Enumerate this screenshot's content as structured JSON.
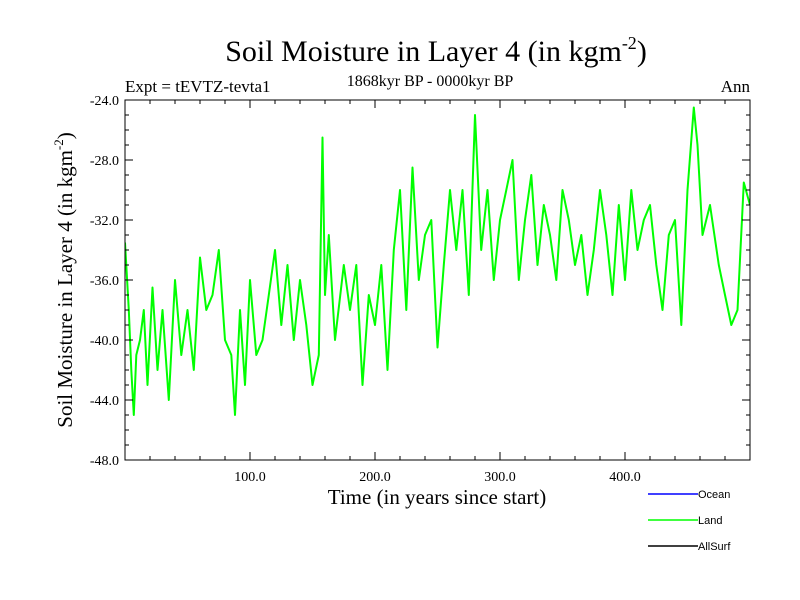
{
  "chart_data": {
    "type": "line",
    "title_main": "Soil Moisture in Layer 4 (in kgm",
    "title_sup": "-2",
    "title_close": ")",
    "subtitle": "1868kyr BP - 0000kyr BP",
    "left_label": "Expt = tEVTZ-tevta1",
    "right_label": "Ann",
    "xlabel": "Time (in years since start)",
    "ylabel_main": "Soil Moisture in Layer 4 (in kgm",
    "ylabel_sup": "-2",
    "ylabel_close": ")",
    "xlim": [
      0,
      500
    ],
    "ylim": [
      -48,
      -24
    ],
    "x_major_ticks": [
      100,
      200,
      300,
      400
    ],
    "x_tick_labels": [
      "100.0",
      "200.0",
      "300.0",
      "400.0"
    ],
    "y_major_ticks": [
      -24,
      -28,
      -32,
      -36,
      -40,
      -44,
      -48
    ],
    "y_tick_labels": [
      "-24.0",
      "-28.0",
      "-32.0",
      "-36.0",
      "-40.0",
      "-44.0",
      "-48.0"
    ],
    "legend": [
      {
        "name": "Ocean",
        "color": "#0000ff"
      },
      {
        "name": "Land",
        "color": "#00ff00"
      },
      {
        "name": "AllSurf",
        "color": "#000000"
      }
    ],
    "series": [
      {
        "name": "Land",
        "color": "#00ff00",
        "x": [
          0,
          3,
          5,
          7,
          9,
          12,
          15,
          18,
          22,
          26,
          30,
          35,
          40,
          45,
          50,
          55,
          60,
          65,
          70,
          75,
          80,
          85,
          88,
          92,
          96,
          100,
          105,
          110,
          115,
          120,
          125,
          130,
          135,
          140,
          145,
          150,
          155,
          158,
          160,
          163,
          168,
          175,
          180,
          185,
          190,
          195,
          200,
          205,
          210,
          215,
          220,
          225,
          230,
          235,
          240,
          245,
          250,
          255,
          260,
          265,
          270,
          275,
          280,
          285,
          290,
          295,
          300,
          305,
          310,
          315,
          320,
          325,
          330,
          335,
          340,
          345,
          350,
          355,
          360,
          365,
          370,
          375,
          380,
          385,
          390,
          395,
          400,
          405,
          410,
          415,
          420,
          425,
          430,
          435,
          440,
          445,
          450,
          455,
          458,
          462,
          468,
          475,
          480,
          485,
          490,
          495,
          500
        ],
        "y": [
          -33.5,
          -38,
          -42,
          -45,
          -41,
          -40,
          -38,
          -43,
          -36.5,
          -42,
          -38,
          -44,
          -36,
          -41,
          -38,
          -42,
          -34.5,
          -38,
          -37,
          -34,
          -40,
          -41,
          -45,
          -38,
          -43,
          -36,
          -41,
          -40,
          -37,
          -34,
          -39,
          -35,
          -40,
          -36,
          -39,
          -43,
          -41,
          -26.5,
          -37,
          -33,
          -40,
          -35,
          -38,
          -35,
          -43,
          -37,
          -39,
          -35,
          -42,
          -34,
          -30,
          -38,
          -28.5,
          -36,
          -33,
          -32,
          -40.5,
          -35,
          -30,
          -34,
          -30,
          -37,
          -25,
          -34,
          -30,
          -36,
          -32,
          -30,
          -28,
          -36,
          -32,
          -29,
          -35,
          -31,
          -33,
          -36,
          -30,
          -32,
          -35,
          -33,
          -37,
          -34,
          -30,
          -33,
          -37,
          -31,
          -36,
          -30,
          -34,
          -32,
          -31,
          -35,
          -38,
          -33,
          -32,
          -39,
          -30,
          -24.5,
          -27,
          -33,
          -31,
          -35,
          -37,
          -39,
          -38,
          -29.5,
          -31
        ]
      }
    ]
  }
}
